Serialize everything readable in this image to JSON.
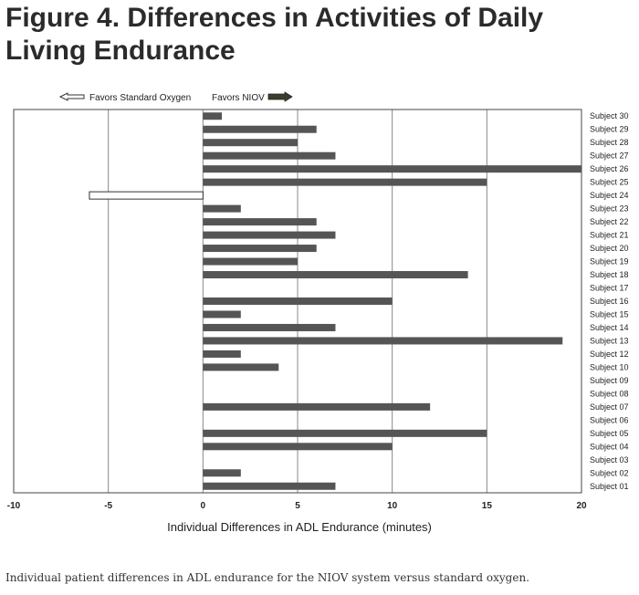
{
  "title": "Figure 4. Differences in Activities of Daily Living Endurance",
  "caption": "Individual patient differences in ADL endurance for the NIOV system versus standard oxygen.",
  "chart_data": {
    "type": "bar",
    "orientation": "horizontal",
    "xlabel": "Individual Differences in ADL Endurance (minutes)",
    "xlim": [
      -10,
      20
    ],
    "xticks": [
      "-10",
      "-5",
      "0",
      "5",
      "10",
      "15",
      "20"
    ],
    "grid": true,
    "legend": [
      {
        "label": "Favors Standard Oxygen",
        "direction": "left",
        "color": "#ffffff"
      },
      {
        "label": "Favors NIOV",
        "direction": "right",
        "color": "#555555"
      }
    ],
    "categories": [
      "Subject 30",
      "Subject 29",
      "Subject 28",
      "Subject 27",
      "Subject 26",
      "Subject 25",
      "Subject 24",
      "Subject 23",
      "Subject 22",
      "Subject 21",
      "Subject 20",
      "Subject 19",
      "Subject 18",
      "Subject 17",
      "Subject 16",
      "Subject 15",
      "Subject 14",
      "Subject 13",
      "Subject 12",
      "Subject 10",
      "Subject 09",
      "Subject 08",
      "Subject 07",
      "Subject 06",
      "Subject 05",
      "Subject 04",
      "Subject 03",
      "Subject 02",
      "Subject 01"
    ],
    "values": [
      1,
      6,
      5,
      7,
      20,
      15,
      -6,
      2,
      6,
      7,
      6,
      5,
      14,
      0,
      10,
      2,
      7,
      19,
      2,
      4,
      0,
      0,
      12,
      0,
      15,
      10,
      0,
      2,
      7
    ],
    "colors": {
      "positive": "#555555",
      "negative": "#ffffff",
      "grid": "#888888"
    }
  }
}
